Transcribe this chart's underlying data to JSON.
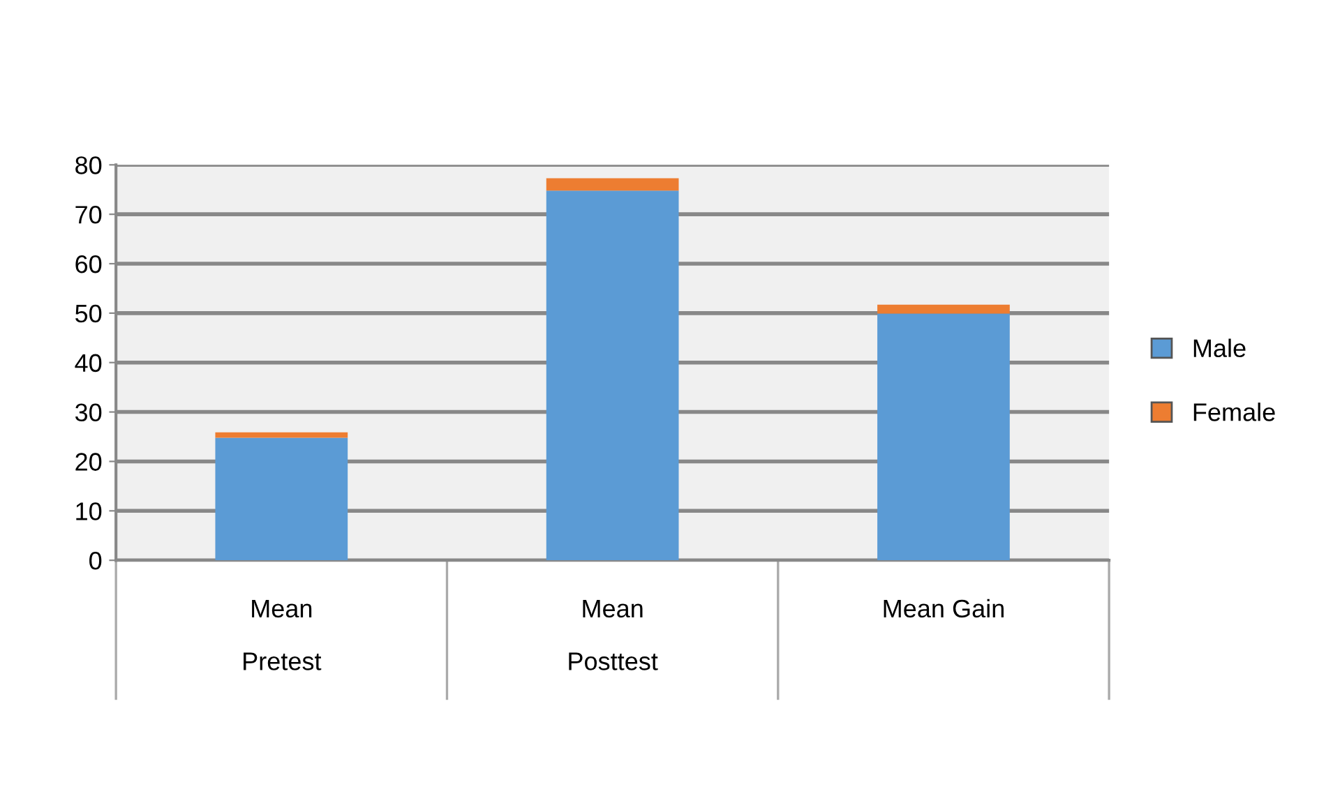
{
  "chart_data": {
    "type": "bar",
    "stacked": true,
    "categories": [
      "Mean\nPretest",
      "Mean\nPosttest",
      "Mean Gain"
    ],
    "series": [
      {
        "name": "Male",
        "color": "#5b9bd5",
        "values": [
          24.8,
          74.8,
          49.9
        ]
      },
      {
        "name": "Female",
        "color": "#ed7d31",
        "values": [
          1.1,
          2.5,
          1.8
        ]
      }
    ],
    "ylim": [
      0,
      80
    ],
    "yticks": [
      0,
      10,
      20,
      30,
      40,
      50,
      60,
      70,
      80
    ],
    "grid": "y",
    "legend": "right"
  }
}
